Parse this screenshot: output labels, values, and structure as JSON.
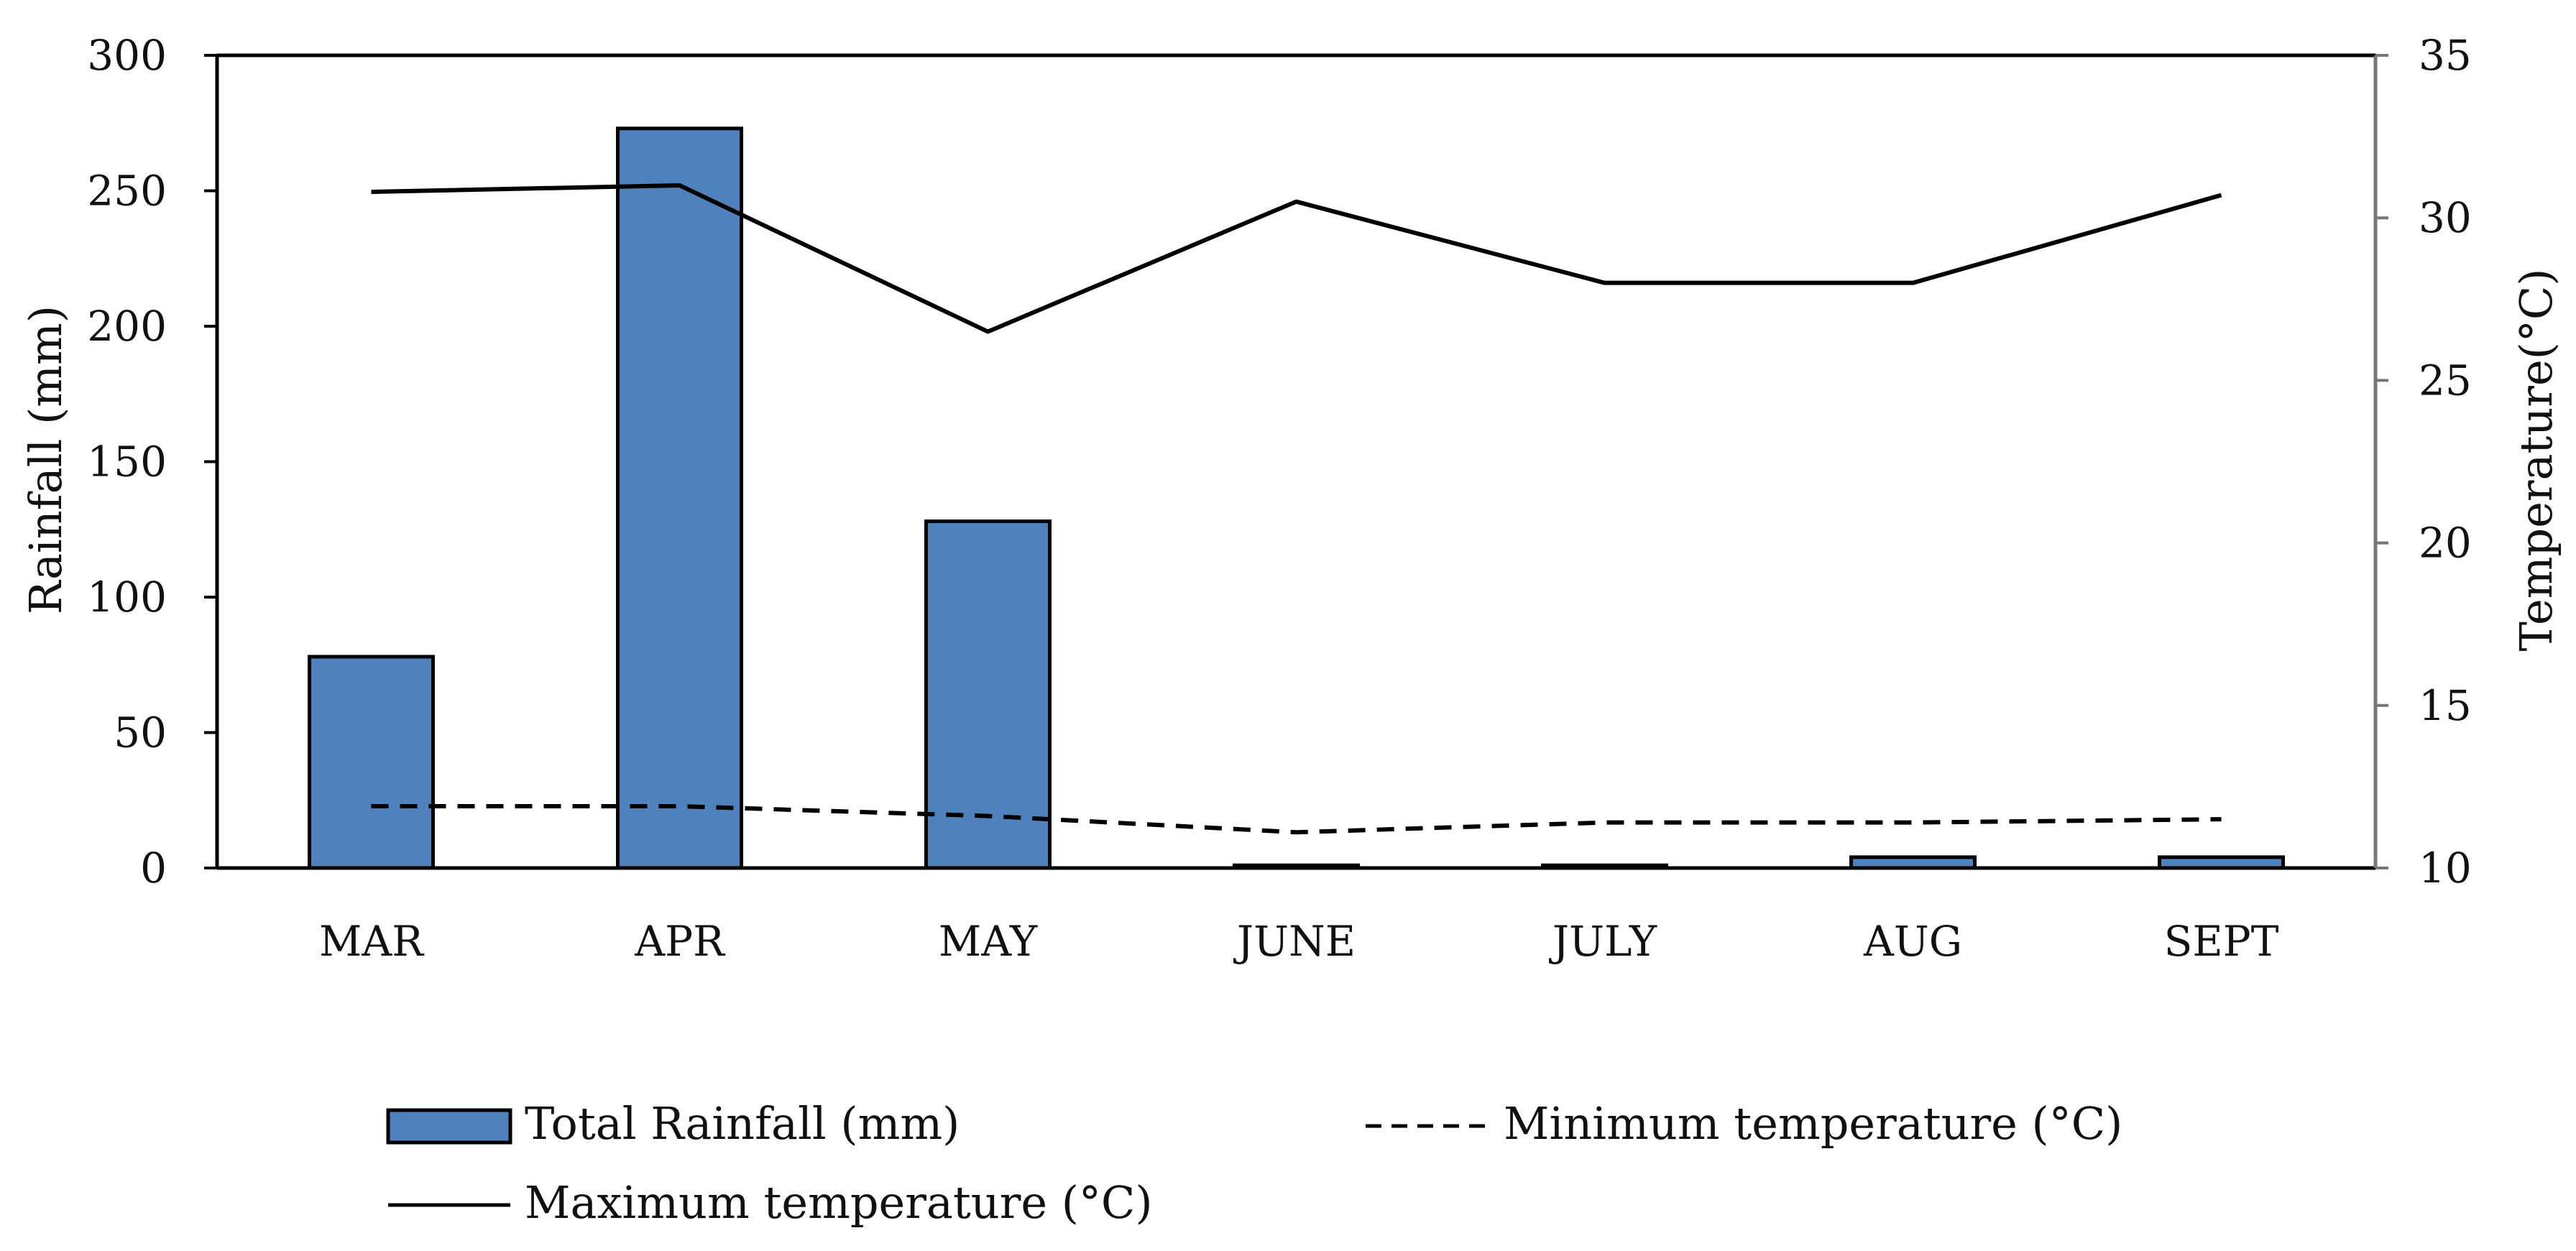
{
  "chart_data": {
    "type": "bar+line",
    "categories": [
      "MAR",
      "APR",
      "MAY",
      "JUNE",
      "JULY",
      "AUG",
      "SEPT"
    ],
    "series": [
      {
        "name": "Total Rainfall (mm)",
        "type": "bar",
        "axis": "left",
        "values": [
          78,
          273,
          128,
          1,
          1,
          4,
          4
        ],
        "color": "#4f81bd"
      },
      {
        "name": "Maximum temperature (°C)",
        "type": "line",
        "style": "solid",
        "axis": "right",
        "values": [
          30.8,
          31.0,
          26.5,
          30.5,
          28.0,
          28.0,
          30.7
        ],
        "color": "#000000"
      },
      {
        "name": "Minimum temperature (°C)",
        "type": "line",
        "style": "dashed",
        "axis": "right",
        "values": [
          11.9,
          11.9,
          11.6,
          11.1,
          11.4,
          11.4,
          11.5
        ],
        "color": "#000000"
      }
    ],
    "ylabel": "Rainfall (mm)",
    "y2label": "Temperature(°C)",
    "ylim": [
      0,
      300
    ],
    "y2lim": [
      10,
      35
    ],
    "yticks": [
      "0",
      "50",
      "100",
      "150",
      "200",
      "250",
      "300"
    ],
    "y2ticks": [
      "10",
      "15",
      "20",
      "25",
      "30",
      "35"
    ],
    "yticks_values": [
      0,
      50,
      100,
      150,
      200,
      250,
      300
    ],
    "y2ticks_values": [
      10,
      15,
      20,
      25,
      30,
      35
    ],
    "grid": false,
    "legend_position": "bottom"
  },
  "legend": {
    "rainfall": "Total Rainfall (mm)",
    "min_temp": "Minimum temperature (°C)",
    "max_temp": "Maximum temperature (°C)"
  },
  "axes": {
    "left_title": "Rainfall (mm)",
    "right_title": "Temperature(°C)"
  }
}
